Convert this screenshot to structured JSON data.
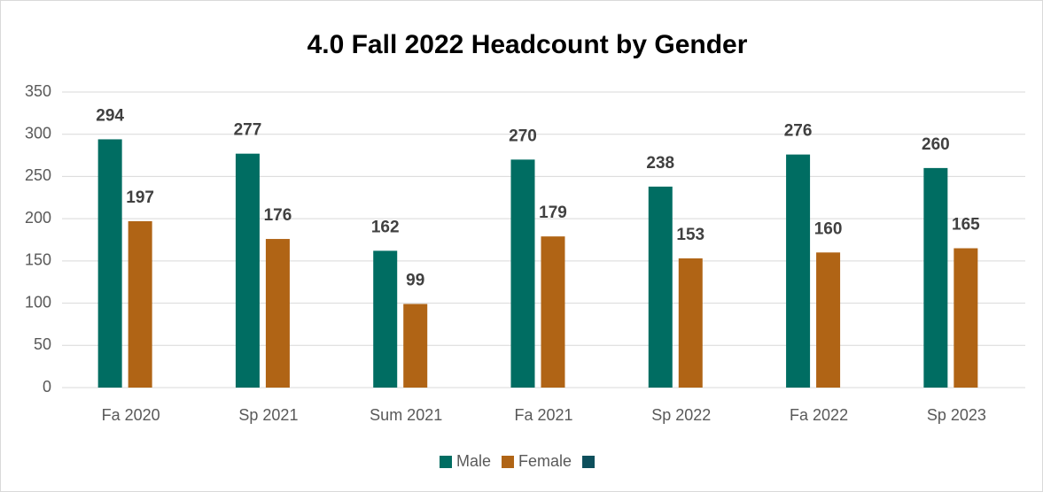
{
  "chart_data": {
    "type": "bar",
    "title": "4.0 Fall 2022 Headcount by Gender",
    "categories": [
      "Fa 2020",
      "Sp 2021",
      "Sum 2021",
      "Fa 2021",
      "Sp 2022",
      "Fa 2022",
      "Sp 2023"
    ],
    "series": [
      {
        "name": "Male",
        "color": "#006d62",
        "values": [
          294,
          277,
          162,
          270,
          238,
          276,
          260
        ]
      },
      {
        "name": "Female",
        "color": "#b06415",
        "values": [
          197,
          176,
          99,
          179,
          153,
          160,
          165
        ]
      },
      {
        "color": "#0d4f5c",
        "values": [
          null,
          null,
          null,
          null,
          null,
          null,
          null
        ]
      }
    ],
    "ylim": [
      0,
      350
    ],
    "yticks": [
      0,
      50,
      100,
      150,
      200,
      250,
      300,
      350
    ],
    "grid": true,
    "legend": "bottom"
  }
}
